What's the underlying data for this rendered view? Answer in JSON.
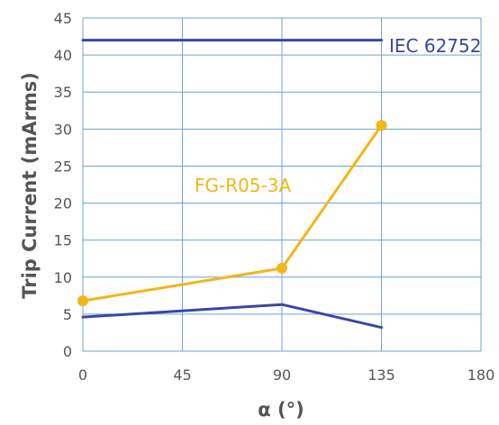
{
  "chart_data": {
    "type": "line",
    "xlabel": "α (°)",
    "ylabel": "Trip Current (mArms)",
    "xlim": [
      0,
      180
    ],
    "ylim": [
      0,
      45
    ],
    "xticks": [
      0,
      45,
      90,
      135,
      180
    ],
    "yticks": [
      0,
      5,
      10,
      15,
      20,
      25,
      30,
      35,
      40,
      45
    ],
    "grid": true,
    "series": [
      {
        "name": "IEC 62752",
        "color": "#3a47a3",
        "markers": false,
        "x": [
          0,
          135
        ],
        "y": [
          42,
          42
        ]
      },
      {
        "name": "FG-R05-3A",
        "color": "#f2b619",
        "markers": true,
        "x": [
          0,
          90,
          135
        ],
        "y": [
          6.8,
          11.2,
          30.5
        ]
      },
      {
        "color": "#3a47a3",
        "markers": false,
        "x": [
          0,
          90,
          135
        ],
        "y": [
          4.6,
          6.3,
          3.2
        ]
      }
    ]
  }
}
